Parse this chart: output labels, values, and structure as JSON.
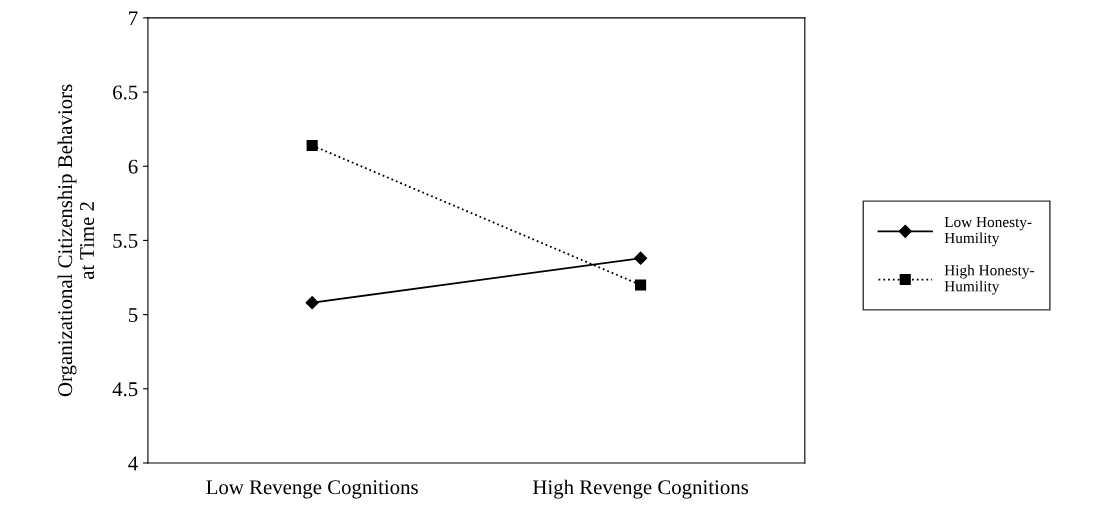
{
  "chart_data": {
    "type": "line",
    "ylabel": "Organizational Citizenship Behaviors\nat Time 2",
    "categories": [
      "Low Revenge Cognitions",
      "High Revenge Cognitions"
    ],
    "series": [
      {
        "name": "Low Honesty-Humility",
        "color": "#000000",
        "values": [
          5.08,
          5.38
        ],
        "marker": "diamond",
        "line_style": "solid"
      },
      {
        "name": "High Honesty-Humility",
        "color": "#000000",
        "values": [
          6.14,
          5.2
        ],
        "marker": "square",
        "line_style": "dotted"
      }
    ],
    "ylim": [
      4,
      7
    ],
    "yticks": [
      4,
      4.5,
      5,
      5.5,
      6,
      6.5,
      7
    ],
    "grid": false,
    "legend": "right"
  }
}
